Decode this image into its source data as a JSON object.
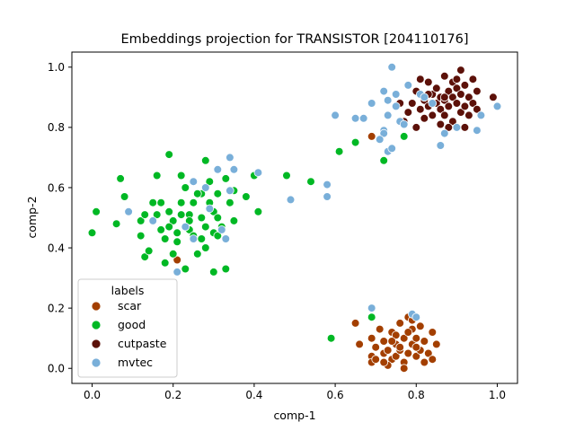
{
  "chart_data": {
    "type": "scatter",
    "title": "Embeddings projection for TRANSISTOR [204110176]",
    "xlabel": "comp-1",
    "ylabel": "comp-2",
    "xlim": [
      -0.05,
      1.05
    ],
    "ylim": [
      -0.05,
      1.05
    ],
    "xticks": [
      "0.0",
      "0.2",
      "0.4",
      "0.6",
      "0.8",
      "1.0"
    ],
    "yticks": [
      "0.0",
      "0.2",
      "0.4",
      "0.6",
      "0.8",
      "1.0"
    ],
    "grid": false,
    "legend": {
      "title": "labels",
      "placement": "lower-left"
    },
    "series": [
      {
        "name": "scar",
        "color": "#a33f00",
        "points": [
          [
            0.65,
            0.15
          ],
          [
            0.66,
            0.08
          ],
          [
            0.69,
            0.1
          ],
          [
            0.7,
            0.07
          ],
          [
            0.69,
            0.04
          ],
          [
            0.69,
            0.02
          ],
          [
            0.72,
            0.05
          ],
          [
            0.72,
            0.09
          ],
          [
            0.73,
            0.06
          ],
          [
            0.74,
            0.03
          ],
          [
            0.74,
            0.12
          ],
          [
            0.75,
            0.08
          ],
          [
            0.75,
            0.04
          ],
          [
            0.76,
            0.06
          ],
          [
            0.76,
            0.15
          ],
          [
            0.77,
            0.1
          ],
          [
            0.77,
            0.02
          ],
          [
            0.78,
            0.17
          ],
          [
            0.78,
            0.05
          ],
          [
            0.79,
            0.08
          ],
          [
            0.79,
            0.13
          ],
          [
            0.8,
            0.04
          ],
          [
            0.8,
            0.1
          ],
          [
            0.81,
            0.06
          ],
          [
            0.81,
            0.14
          ],
          [
            0.82,
            0.02
          ],
          [
            0.82,
            0.09
          ],
          [
            0.83,
            0.05
          ],
          [
            0.84,
            0.12
          ],
          [
            0.85,
            0.08
          ],
          [
            0.84,
            0.03
          ],
          [
            0.77,
            0.0
          ],
          [
            0.73,
            0.01
          ],
          [
            0.75,
            0.11
          ],
          [
            0.79,
            0.16
          ],
          [
            0.71,
            0.13
          ],
          [
            0.76,
            0.07
          ],
          [
            0.78,
            0.12
          ],
          [
            0.7,
            0.03
          ],
          [
            0.8,
            0.07
          ],
          [
            0.72,
            0.02
          ],
          [
            0.74,
            0.09
          ],
          [
            0.21,
            0.36
          ],
          [
            0.69,
            0.77
          ]
        ]
      },
      {
        "name": "good",
        "color": "#00b824",
        "points": [
          [
            0.0,
            0.45
          ],
          [
            0.01,
            0.52
          ],
          [
            0.06,
            0.48
          ],
          [
            0.07,
            0.63
          ],
          [
            0.08,
            0.57
          ],
          [
            0.12,
            0.44
          ],
          [
            0.12,
            0.49
          ],
          [
            0.13,
            0.51
          ],
          [
            0.13,
            0.37
          ],
          [
            0.14,
            0.39
          ],
          [
            0.15,
            0.55
          ],
          [
            0.16,
            0.64
          ],
          [
            0.16,
            0.51
          ],
          [
            0.17,
            0.46
          ],
          [
            0.18,
            0.35
          ],
          [
            0.18,
            0.43
          ],
          [
            0.19,
            0.52
          ],
          [
            0.19,
            0.71
          ],
          [
            0.2,
            0.49
          ],
          [
            0.2,
            0.38
          ],
          [
            0.21,
            0.45
          ],
          [
            0.21,
            0.42
          ],
          [
            0.22,
            0.55
          ],
          [
            0.22,
            0.64
          ],
          [
            0.23,
            0.6
          ],
          [
            0.23,
            0.33
          ],
          [
            0.24,
            0.51
          ],
          [
            0.24,
            0.46
          ],
          [
            0.25,
            0.44
          ],
          [
            0.25,
            0.55
          ],
          [
            0.26,
            0.38
          ],
          [
            0.27,
            0.58
          ],
          [
            0.27,
            0.5
          ],
          [
            0.28,
            0.47
          ],
          [
            0.28,
            0.4
          ],
          [
            0.29,
            0.62
          ],
          [
            0.29,
            0.55
          ],
          [
            0.3,
            0.45
          ],
          [
            0.3,
            0.52
          ],
          [
            0.31,
            0.58
          ],
          [
            0.31,
            0.5
          ],
          [
            0.32,
            0.47
          ],
          [
            0.33,
            0.63
          ],
          [
            0.33,
            0.33
          ],
          [
            0.34,
            0.55
          ],
          [
            0.35,
            0.59
          ],
          [
            0.35,
            0.49
          ],
          [
            0.38,
            0.57
          ],
          [
            0.4,
            0.64
          ],
          [
            0.41,
            0.52
          ],
          [
            0.48,
            0.64
          ],
          [
            0.54,
            0.62
          ],
          [
            0.61,
            0.72
          ],
          [
            0.65,
            0.75
          ],
          [
            0.69,
            0.17
          ],
          [
            0.72,
            0.69
          ],
          [
            0.77,
            0.77
          ],
          [
            0.59,
            0.1
          ],
          [
            0.3,
            0.32
          ],
          [
            0.28,
            0.69
          ],
          [
            0.22,
            0.51
          ],
          [
            0.26,
            0.58
          ],
          [
            0.17,
            0.55
          ],
          [
            0.24,
            0.49
          ],
          [
            0.19,
            0.47
          ],
          [
            0.27,
            0.43
          ],
          [
            0.31,
            0.44
          ]
        ]
      },
      {
        "name": "cutpaste",
        "color": "#5c1109",
        "points": [
          [
            0.78,
            0.85
          ],
          [
            0.79,
            0.88
          ],
          [
            0.8,
            0.92
          ],
          [
            0.81,
            0.86
          ],
          [
            0.82,
            0.83
          ],
          [
            0.82,
            0.89
          ],
          [
            0.83,
            0.95
          ],
          [
            0.83,
            0.87
          ],
          [
            0.84,
            0.91
          ],
          [
            0.84,
            0.84
          ],
          [
            0.85,
            0.88
          ],
          [
            0.85,
            0.93
          ],
          [
            0.86,
            0.86
          ],
          [
            0.86,
            0.9
          ],
          [
            0.87,
            0.97
          ],
          [
            0.87,
            0.84
          ],
          [
            0.87,
            0.89
          ],
          [
            0.88,
            0.92
          ],
          [
            0.88,
            0.87
          ],
          [
            0.89,
            0.95
          ],
          [
            0.89,
            0.82
          ],
          [
            0.89,
            0.9
          ],
          [
            0.9,
            0.88
          ],
          [
            0.9,
            0.93
          ],
          [
            0.91,
            0.85
          ],
          [
            0.91,
            0.91
          ],
          [
            0.91,
            0.99
          ],
          [
            0.92,
            0.87
          ],
          [
            0.92,
            0.94
          ],
          [
            0.93,
            0.84
          ],
          [
            0.93,
            0.9
          ],
          [
            0.94,
            0.88
          ],
          [
            0.94,
            0.96
          ],
          [
            0.95,
            0.92
          ],
          [
            0.95,
            0.86
          ],
          [
            0.76,
            0.88
          ],
          [
            0.77,
            0.82
          ],
          [
            0.8,
            0.8
          ],
          [
            0.86,
            0.81
          ],
          [
            0.88,
            0.8
          ],
          [
            0.92,
            0.8
          ],
          [
            0.99,
            0.9
          ],
          [
            0.72,
            0.78
          ],
          [
            0.81,
            0.96
          ],
          [
            0.87,
            0.9
          ],
          [
            0.83,
            0.91
          ],
          [
            0.9,
            0.96
          ]
        ]
      },
      {
        "name": "mvtec",
        "color": "#79afd9",
        "points": [
          [
            0.09,
            0.52
          ],
          [
            0.15,
            0.49
          ],
          [
            0.21,
            0.32
          ],
          [
            0.23,
            0.47
          ],
          [
            0.25,
            0.62
          ],
          [
            0.25,
            0.43
          ],
          [
            0.28,
            0.6
          ],
          [
            0.29,
            0.53
          ],
          [
            0.31,
            0.66
          ],
          [
            0.32,
            0.46
          ],
          [
            0.33,
            0.43
          ],
          [
            0.34,
            0.59
          ],
          [
            0.34,
            0.7
          ],
          [
            0.35,
            0.66
          ],
          [
            0.41,
            0.65
          ],
          [
            0.49,
            0.56
          ],
          [
            0.58,
            0.61
          ],
          [
            0.58,
            0.57
          ],
          [
            0.6,
            0.84
          ],
          [
            0.65,
            0.83
          ],
          [
            0.67,
            0.83
          ],
          [
            0.69,
            0.88
          ],
          [
            0.69,
            0.2
          ],
          [
            0.72,
            0.79
          ],
          [
            0.72,
            0.92
          ],
          [
            0.73,
            0.89
          ],
          [
            0.73,
            0.84
          ],
          [
            0.73,
            0.72
          ],
          [
            0.74,
            1.0
          ],
          [
            0.74,
            0.73
          ],
          [
            0.75,
            0.91
          ],
          [
            0.75,
            0.87
          ],
          [
            0.76,
            0.82
          ],
          [
            0.77,
            0.81
          ],
          [
            0.78,
            0.94
          ],
          [
            0.79,
            0.18
          ],
          [
            0.8,
            0.17
          ],
          [
            0.81,
            0.91
          ],
          [
            0.82,
            0.9
          ],
          [
            0.84,
            0.88
          ],
          [
            0.86,
            0.74
          ],
          [
            0.87,
            0.78
          ],
          [
            0.9,
            0.8
          ],
          [
            0.95,
            0.79
          ],
          [
            0.96,
            0.84
          ],
          [
            1.0,
            0.87
          ],
          [
            0.72,
            0.78
          ],
          [
            0.71,
            0.76
          ]
        ]
      }
    ]
  }
}
